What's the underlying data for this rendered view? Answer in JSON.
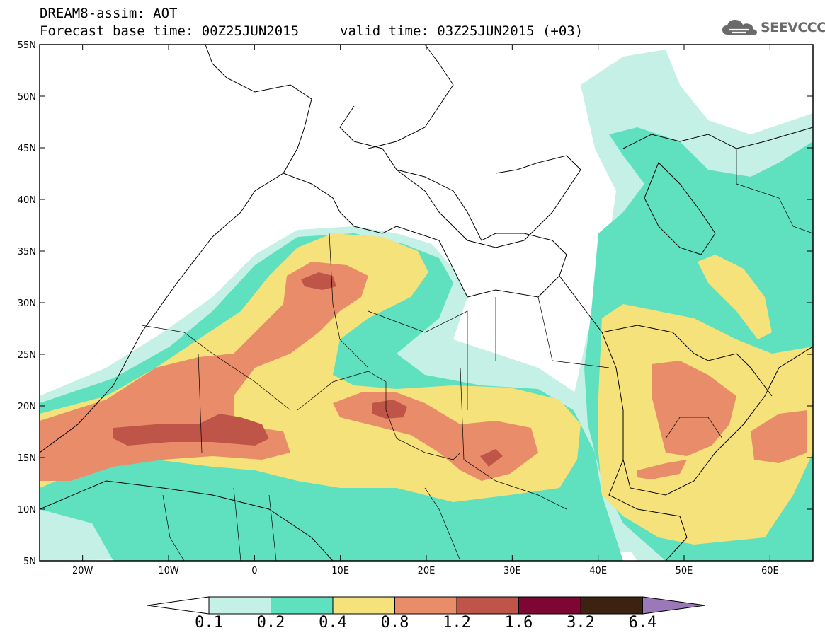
{
  "header": {
    "title": "DREAM8-assim: AOT",
    "base_time": "Forecast base time: 00Z25JUN2015",
    "valid_time": "valid time: 03Z25JUN2015 (+03)"
  },
  "logo": {
    "text": "SEEVCCC",
    "icon": "cloud-logo-icon"
  },
  "map": {
    "lon_range": [
      -25,
      65
    ],
    "lat_range": [
      5,
      55
    ],
    "lat_ticks": [
      "55N",
      "50N",
      "45N",
      "40N",
      "35N",
      "30N",
      "25N",
      "20N",
      "15N",
      "10N",
      "5N"
    ],
    "lon_ticks": [
      "20W",
      "10W",
      "0",
      "10E",
      "20E",
      "30E",
      "40E",
      "50E",
      "60E"
    ]
  },
  "colorbar": {
    "levels": [
      "0.1",
      "0.2",
      "0.4",
      "0.8",
      "1.2",
      "1.6",
      "3.2",
      "6.4"
    ],
    "colors": [
      "#c4f0e6",
      "#5fe0bf",
      "#f6e27a",
      "#e98c6a",
      "#bf5549",
      "#7e0632",
      "#3c2210",
      "#9b79b8"
    ]
  },
  "shading_colors": {
    "c1": "#c4f0e6",
    "c2": "#5fe0bf",
    "c3": "#f6e27a",
    "c4": "#e98c6a",
    "c5": "#bf5549",
    "c6": "#7e0632"
  }
}
